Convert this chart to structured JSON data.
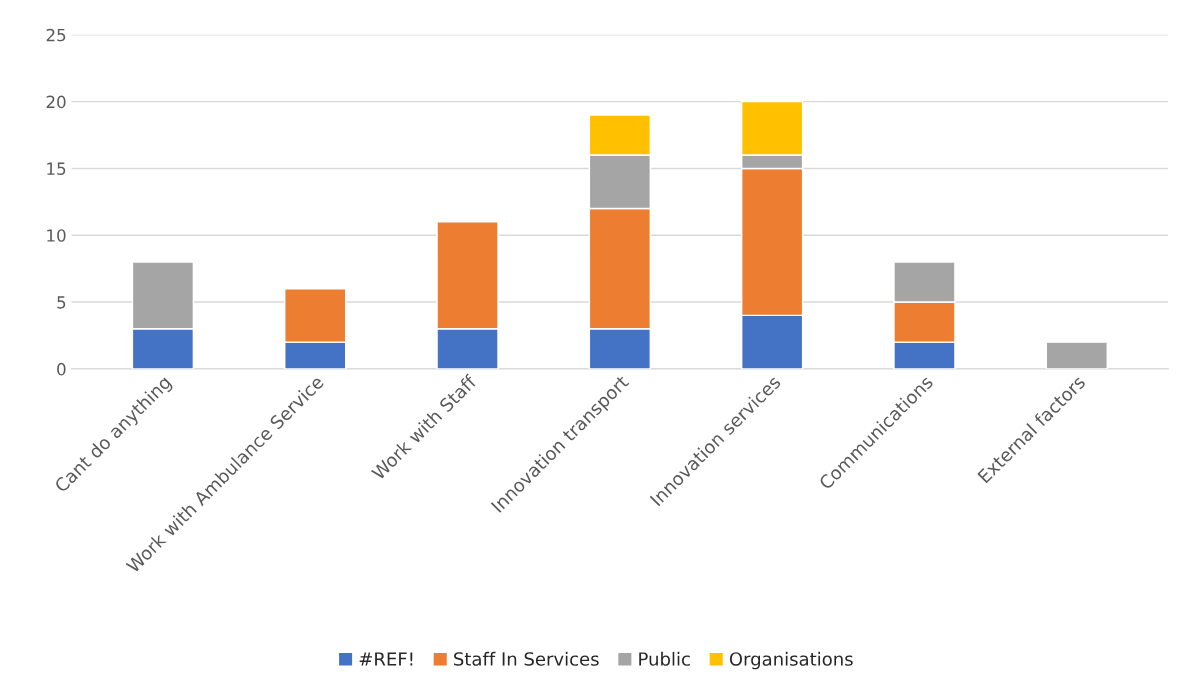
{
  "chart_data": {
    "type": "bar",
    "stacked": true,
    "categories": [
      "Cant do anything",
      "Work with Ambulance Service",
      "Work with Staff",
      "Innovation transport",
      "Innovation services",
      "Communications",
      "External factors"
    ],
    "series": [
      {
        "name": "#REF!",
        "color": "#4472c4",
        "values": [
          3,
          2,
          3,
          3,
          4,
          2,
          null
        ]
      },
      {
        "name": "Staff In Services",
        "color": "#ed7d31",
        "values": [
          null,
          4,
          8,
          9,
          11,
          3,
          null
        ]
      },
      {
        "name": "Public",
        "color": "#a5a5a5",
        "values": [
          5,
          null,
          null,
          4,
          1,
          3,
          2
        ]
      },
      {
        "name": "Organisations",
        "color": "#ffc000",
        "values": [
          null,
          null,
          null,
          3,
          4,
          null,
          null
        ]
      }
    ],
    "ylim": [
      0,
      25
    ],
    "yticks": [
      0,
      5,
      10,
      15,
      20,
      25
    ],
    "grid": "y",
    "legend": "bottom"
  }
}
